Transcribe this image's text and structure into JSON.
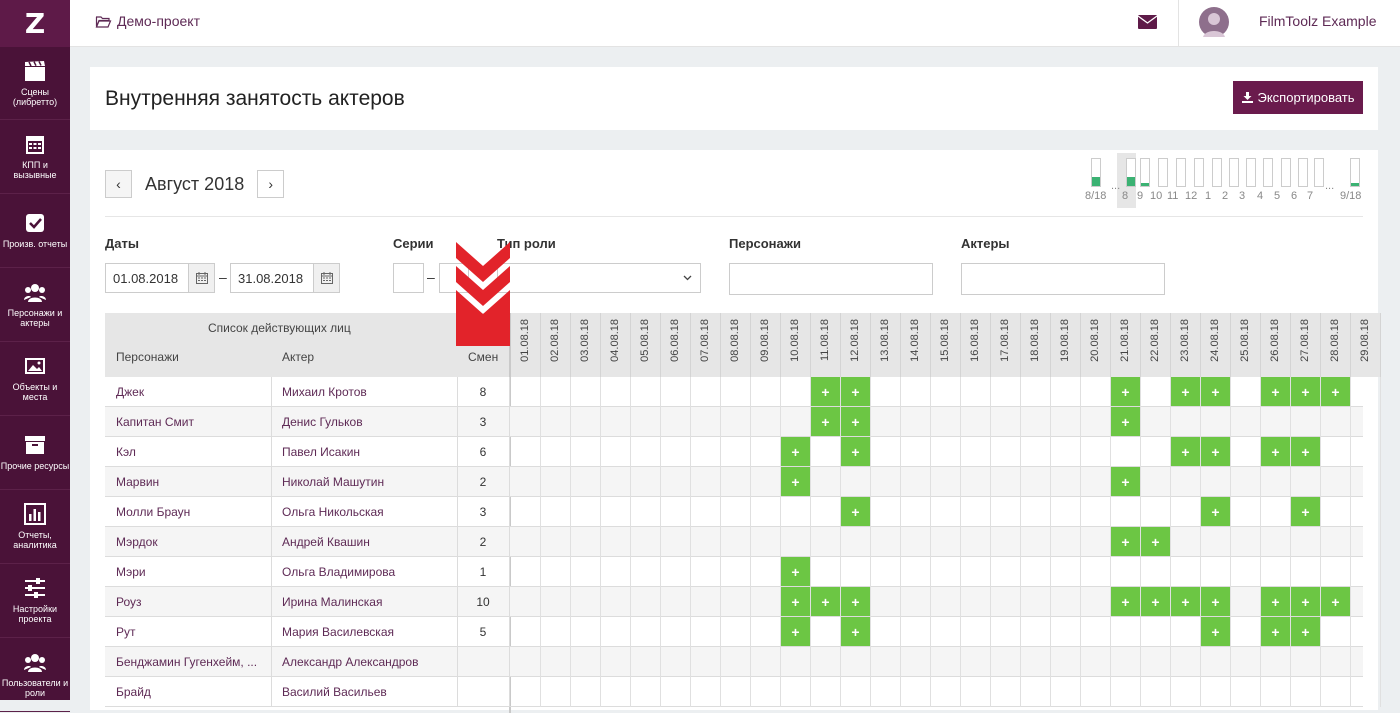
{
  "logo_text": "Z",
  "sidebar": {
    "items": [
      {
        "label": "Сцены (либретто)",
        "icon": "clapperboard-icon"
      },
      {
        "label": "КПП и вызывные",
        "icon": "calendar-icon"
      },
      {
        "label": "Произв. отчеты",
        "icon": "checkbox-icon"
      },
      {
        "label": "Персонажи и актеры",
        "icon": "users-icon"
      },
      {
        "label": "Объекты и места",
        "icon": "image-icon"
      },
      {
        "label": "Прочие ресурсы",
        "icon": "archive-icon"
      },
      {
        "label": "Отчеты, аналитика",
        "icon": "bar-chart-icon"
      },
      {
        "label": "Настройки проекта",
        "icon": "sliders-icon"
      },
      {
        "label": "Пользователи и роли",
        "icon": "users-group-icon"
      }
    ]
  },
  "topbar": {
    "project": "Демо-проект",
    "username": "FilmToolz Example"
  },
  "header": {
    "title": "Внутренняя занятость актеров",
    "export_label": "Экспортировать"
  },
  "calendar": {
    "month": "Август 2018",
    "prev": "‹",
    "next": "›",
    "mini_labels": [
      "8/18",
      "8",
      "9",
      "10",
      "11",
      "12",
      "1",
      "2",
      "3",
      "4",
      "5",
      "6",
      "7",
      "9/18"
    ]
  },
  "filters": {
    "dates_label": "Даты",
    "date_from": "01.08.2018",
    "date_to": "31.08.2018",
    "series_label": "Серии",
    "role_type_label": "Тип роли",
    "characters_label": "Персонажи",
    "actors_label": "Актеры",
    "dash": "–"
  },
  "table": {
    "cast_list_header": "Список действующих лиц",
    "col_character": "Персонажи",
    "col_actor": "Актер",
    "col_shifts": "Смен",
    "dates": [
      "01.08.18",
      "02.08.18",
      "03.08.18",
      "04.08.18",
      "05.08.18",
      "06.08.18",
      "07.08.18",
      "08.08.18",
      "09.08.18",
      "10.08.18",
      "11.08.18",
      "12.08.18",
      "13.08.18",
      "14.08.18",
      "15.08.18",
      "16.08.18",
      "17.08.18",
      "18.08.18",
      "19.08.18",
      "20.08.18",
      "21.08.18",
      "22.08.18",
      "23.08.18",
      "24.08.18",
      "25.08.18",
      "26.08.18",
      "27.08.18",
      "28.08.18",
      "29.08.18"
    ],
    "plus_label": "+",
    "rows": [
      {
        "character": "Джек",
        "actor": "Михаил Кротов",
        "shifts": "8",
        "days": [
          11,
          12,
          21,
          23,
          24,
          26,
          27,
          28
        ]
      },
      {
        "character": "Капитан Смит",
        "actor": "Денис Гульков",
        "shifts": "3",
        "days": [
          11,
          12,
          21
        ]
      },
      {
        "character": "Кэл",
        "actor": "Павел Исакин",
        "shifts": "6",
        "days": [
          10,
          12,
          23,
          24,
          26,
          27
        ]
      },
      {
        "character": "Марвин",
        "actor": "Николай Машутин",
        "shifts": "2",
        "days": [
          10,
          21
        ]
      },
      {
        "character": "Молли Браун",
        "actor": "Ольга Никольская",
        "shifts": "3",
        "days": [
          12,
          24,
          27
        ]
      },
      {
        "character": "Мэрдок",
        "actor": "Андрей Квашин",
        "shifts": "2",
        "days": [
          21,
          22
        ]
      },
      {
        "character": "Мэри",
        "actor": "Ольга Владимирова",
        "shifts": "1",
        "days": [
          10
        ]
      },
      {
        "character": "Роуз",
        "actor": "Ирина Малинская",
        "shifts": "10",
        "days": [
          10,
          11,
          12,
          21,
          22,
          23,
          24,
          26,
          27,
          28
        ]
      },
      {
        "character": "Рут",
        "actor": "Мария Василевская",
        "shifts": "5",
        "days": [
          10,
          12,
          24,
          26,
          27
        ]
      },
      {
        "character": "Бенджамин Гугенхейм, ...",
        "actor": "Александр Александров",
        "shifts": "",
        "days": []
      },
      {
        "character": "Брайд",
        "actor": "Василий Васильев",
        "shifts": "",
        "days": []
      }
    ]
  },
  "colors": {
    "sidebar": "#4a1238",
    "accent": "#6a1b4d",
    "booked": "#6cc644",
    "link": "#5e2a55",
    "marker": "#e2232a"
  }
}
